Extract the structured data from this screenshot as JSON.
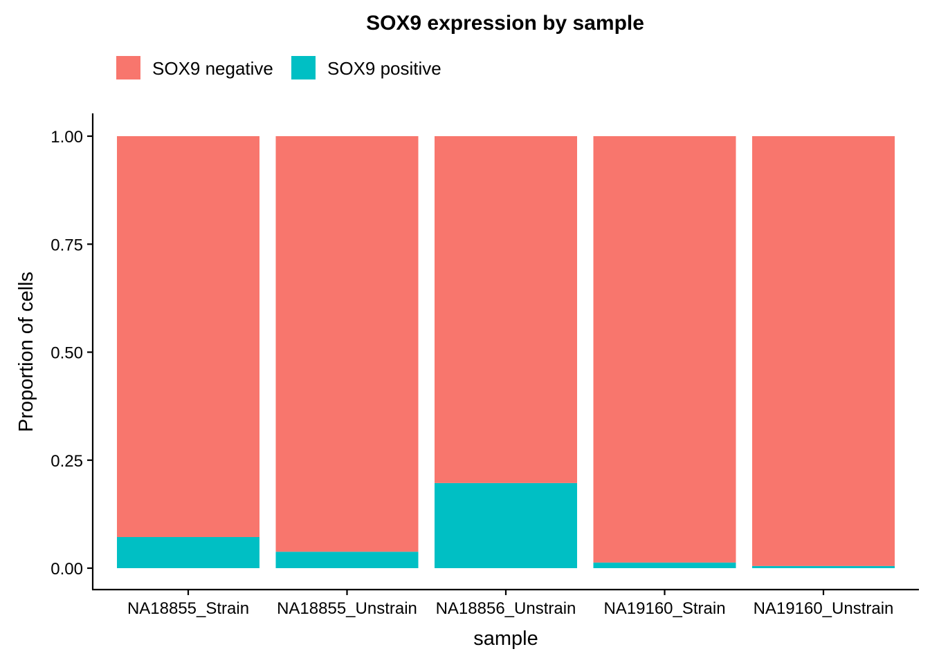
{
  "chart_data": {
    "type": "bar",
    "stacked": true,
    "title": "SOX9 expression by sample",
    "xlabel": "sample",
    "ylabel": "Proportion of cells",
    "ylim": [
      0,
      1
    ],
    "yticks": [
      "0.00",
      "0.25",
      "0.50",
      "0.75",
      "1.00"
    ],
    "ytick_values": [
      0,
      0.25,
      0.5,
      0.75,
      1.0
    ],
    "categories": [
      "NA18855_Strain",
      "NA18855_Unstrain",
      "NA18856_Unstrain",
      "NA19160_Strain",
      "NA19160_Unstrain"
    ],
    "series": [
      {
        "name": "SOX9 negative",
        "color": "#F8766D",
        "values": [
          0.928,
          0.962,
          0.803,
          0.987,
          0.995
        ]
      },
      {
        "name": "SOX9 positive",
        "color": "#00BFC4",
        "values": [
          0.072,
          0.038,
          0.197,
          0.013,
          0.005
        ]
      }
    ],
    "grid": false,
    "legend_position": "top"
  }
}
